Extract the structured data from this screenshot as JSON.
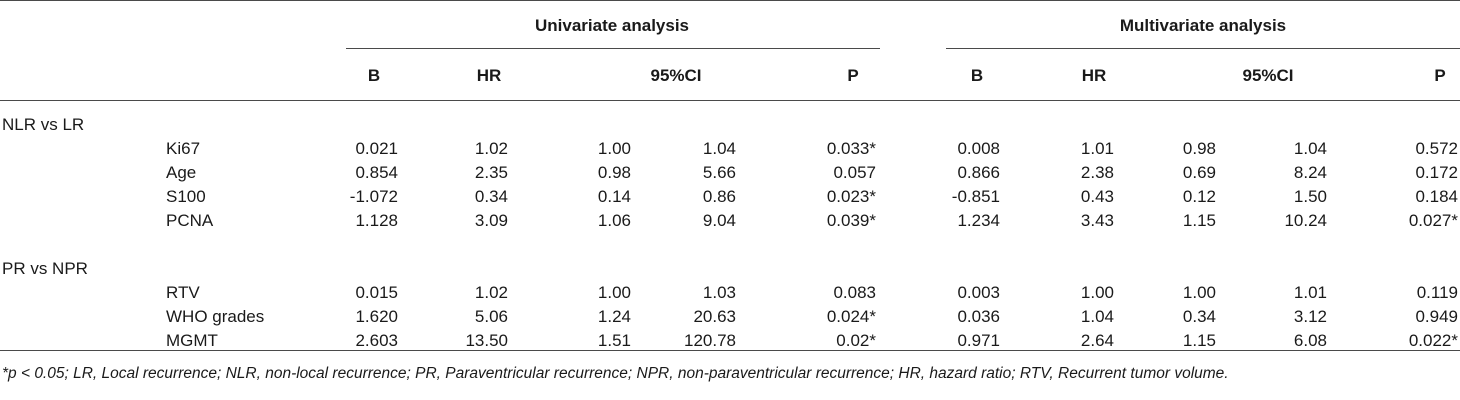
{
  "header": {
    "groups": [
      "Univariate analysis",
      "Multivariate analysis"
    ],
    "columns": [
      "B",
      "HR",
      "95%CI",
      "P",
      "B",
      "HR",
      "95%CI",
      "P"
    ]
  },
  "sections": [
    {
      "label": "NLR vs LR",
      "rows": [
        {
          "name": "Ki67",
          "values": [
            "0.021",
            "1.02",
            "1.00",
            "1.04",
            "0.033*",
            "0.008",
            "1.01",
            "0.98",
            "1.04",
            "0.572"
          ]
        },
        {
          "name": "Age",
          "values": [
            "0.854",
            "2.35",
            "0.98",
            "5.66",
            "0.057",
            "0.866",
            "2.38",
            "0.69",
            "8.24",
            "0.172"
          ]
        },
        {
          "name": "S100",
          "values": [
            "-1.072",
            "0.34",
            "0.14",
            "0.86",
            "0.023*",
            "-0.851",
            "0.43",
            "0.12",
            "1.50",
            "0.184"
          ]
        },
        {
          "name": "PCNA",
          "values": [
            "1.128",
            "3.09",
            "1.06",
            "9.04",
            "0.039*",
            "1.234",
            "3.43",
            "1.15",
            "10.24",
            "0.027*"
          ]
        }
      ]
    },
    {
      "label": "PR vs NPR",
      "rows": [
        {
          "name": "RTV",
          "values": [
            "0.015",
            "1.02",
            "1.00",
            "1.03",
            "0.083",
            "0.003",
            "1.00",
            "1.00",
            "1.01",
            "0.119"
          ]
        },
        {
          "name": "WHO grades",
          "values": [
            "1.620",
            "5.06",
            "1.24",
            "20.63",
            "0.024*",
            "0.036",
            "1.04",
            "0.34",
            "3.12",
            "0.949"
          ]
        },
        {
          "name": "MGMT",
          "values": [
            "2.603",
            "13.50",
            "1.51",
            "120.78",
            "0.02*",
            "0.971",
            "2.64",
            "1.15",
            "6.08",
            "0.022*"
          ]
        }
      ]
    }
  ],
  "footnote": "*p < 0.05; LR, Local recurrence; NLR, non-local recurrence; PR, Paraventricular recurrence; NPR, non-paraventricular recurrence; HR, hazard ratio; RTV, Recurrent tumor volume."
}
